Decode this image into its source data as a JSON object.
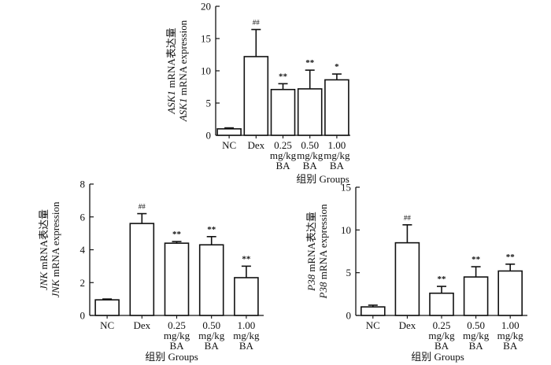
{
  "chart_data": [
    {
      "type": "bar",
      "id": "ask1",
      "ylabel_line1_italic": "ASK1",
      "ylabel_line1_rest": " mRNA表达量",
      "ylabel_line2_italic": "ASK1",
      "ylabel_line2_rest": " mRNA expression",
      "xlabel": "组别 Groups",
      "ylim": [
        0,
        20
      ],
      "yticks": [
        "0",
        "5",
        "10",
        "15",
        "20"
      ],
      "categories": [
        [
          "NC"
        ],
        [
          "Dex"
        ],
        [
          "0.25",
          "mg/kg",
          "BA"
        ],
        [
          "0.50",
          "mg/kg",
          "BA"
        ],
        [
          "1.00",
          "mg/kg",
          "BA"
        ]
      ],
      "values": [
        1.0,
        12.2,
        7.1,
        7.2,
        8.6
      ],
      "errors": [
        0.15,
        4.2,
        0.9,
        2.9,
        0.9
      ],
      "annotations": [
        "",
        "##",
        "**",
        "**",
        "*"
      ]
    },
    {
      "type": "bar",
      "id": "jnk",
      "ylabel_line1_italic": "JNK",
      "ylabel_line1_rest": " mRNA表达量",
      "ylabel_line2_italic": "JNK",
      "ylabel_line2_rest": " mRNA expression",
      "xlabel": "组别 Groups",
      "ylim": [
        0,
        8
      ],
      "yticks": [
        "0",
        "2",
        "4",
        "6",
        "8"
      ],
      "categories": [
        [
          "NC"
        ],
        [
          "Dex"
        ],
        [
          "0.25",
          "mg/kg",
          "BA"
        ],
        [
          "0.50",
          "mg/kg",
          "BA"
        ],
        [
          "1.00",
          "mg/kg",
          "BA"
        ]
      ],
      "values": [
        0.95,
        5.6,
        4.4,
        4.3,
        2.3
      ],
      "errors": [
        0.05,
        0.6,
        0.1,
        0.5,
        0.7
      ],
      "annotations": [
        "",
        "##",
        "**",
        "**",
        "**"
      ]
    },
    {
      "type": "bar",
      "id": "p38",
      "ylabel_line1_italic": "P38",
      "ylabel_line1_rest": " mRNA表达量",
      "ylabel_line2_italic": "P38",
      "ylabel_line2_rest": " mRNA expression",
      "xlabel": "组别 Groups",
      "ylim": [
        0,
        15
      ],
      "yticks": [
        "0",
        "5",
        "10",
        "15"
      ],
      "categories": [
        [
          "NC"
        ],
        [
          "Dex"
        ],
        [
          "0.25",
          "mg/kg",
          "BA"
        ],
        [
          "0.50",
          "mg/kg",
          "BA"
        ],
        [
          "1.00",
          "mg/kg",
          "BA"
        ]
      ],
      "values": [
        1.0,
        8.5,
        2.6,
        4.5,
        5.2
      ],
      "errors": [
        0.2,
        2.1,
        0.8,
        1.2,
        0.8
      ],
      "annotations": [
        "",
        "##",
        "**",
        "**",
        "**"
      ]
    }
  ]
}
